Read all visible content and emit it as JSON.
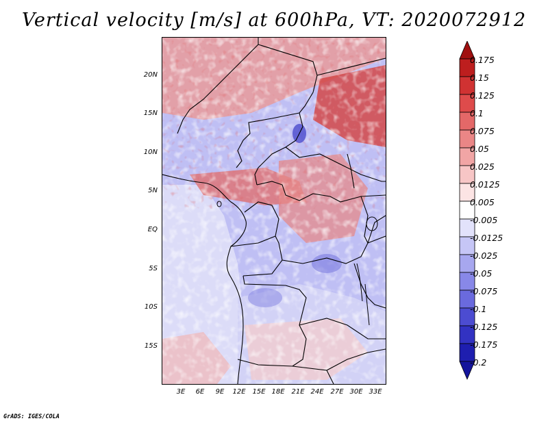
{
  "title": "Vertical velocity [m/s] at 600hPa, VT: 2020072912",
  "credit": "GrADS: IGES/COLA",
  "map": {
    "lat_labels": [
      "20N",
      "15N",
      "10N",
      "5N",
      "EQ",
      "5S",
      "10S",
      "15S"
    ],
    "lon_labels": [
      "3E",
      "6E",
      "9E",
      "12E",
      "15E",
      "18E",
      "21E",
      "24E",
      "27E",
      "30E",
      "33E"
    ]
  },
  "colorbar": {
    "levels": [
      "0.175",
      "0.15",
      "0.125",
      "0.1",
      "0.075",
      "0.05",
      "0.025",
      "0.0125",
      "0.005",
      "-0.005",
      "-0.0125",
      "-0.025",
      "-0.05",
      "-0.075",
      "-0.1",
      "-0.125",
      "-0.175",
      "-0.2"
    ],
    "colors": [
      "#a01010",
      "#bd1e1e",
      "#d03232",
      "#de4b4b",
      "#e46868",
      "#ea8686",
      "#f1a5a5",
      "#f7c6c6",
      "#fce4e4",
      "#ffffff",
      "#e2e2fb",
      "#c6c6f6",
      "#a7a7ef",
      "#8888e8",
      "#6a6ade",
      "#4c4cd1",
      "#3232c2",
      "#1e1eaf",
      "#14149c"
    ]
  }
}
